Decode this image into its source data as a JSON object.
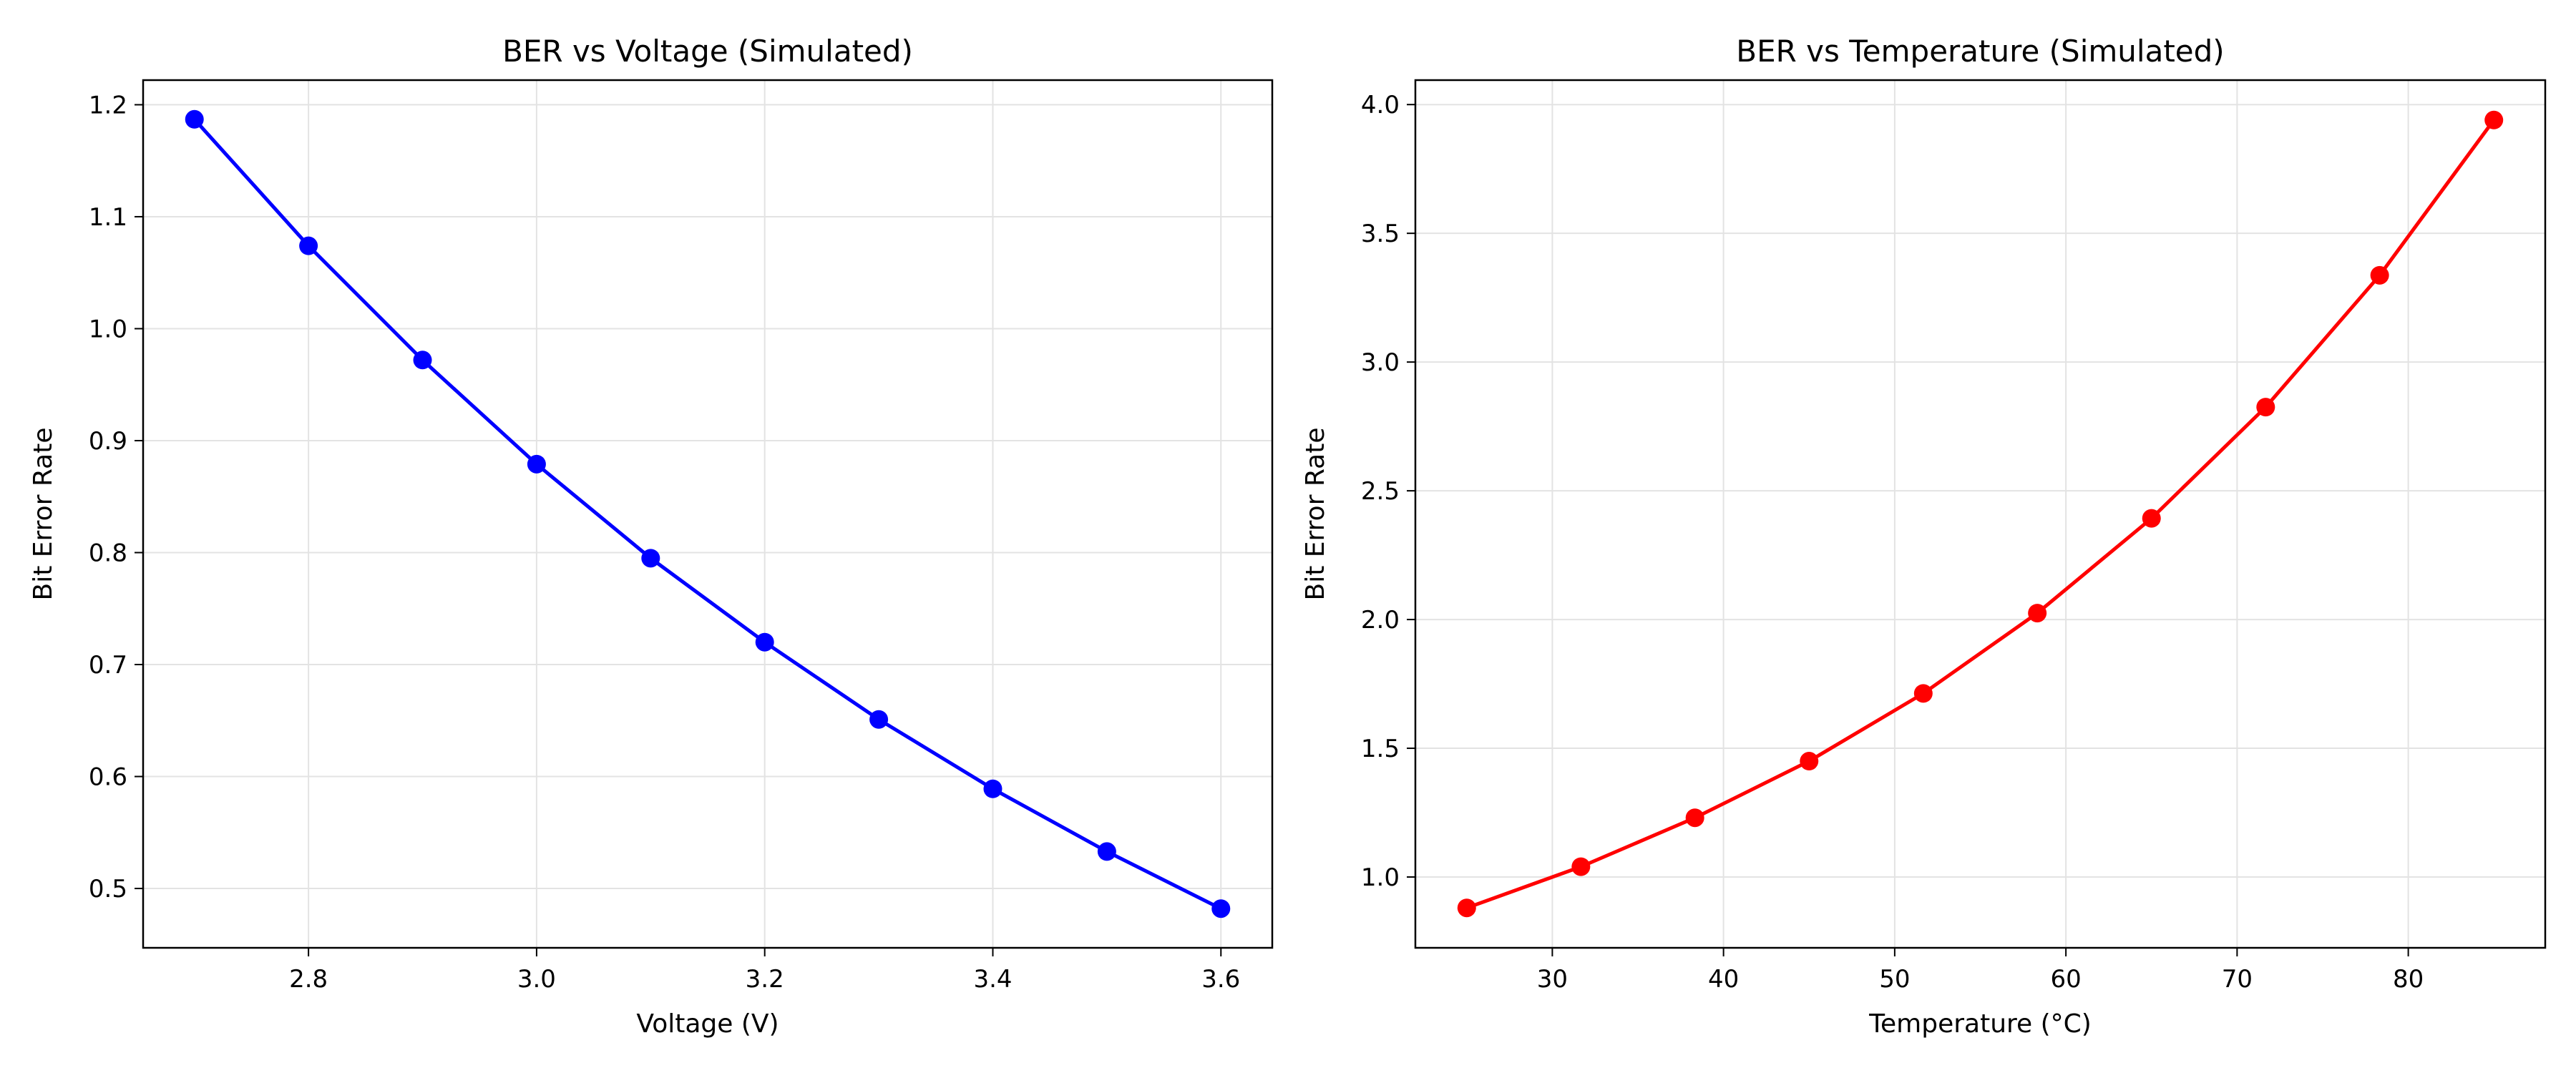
{
  "chart_data": [
    {
      "type": "line",
      "title": "BER vs Voltage (Simulated)",
      "xlabel": "Voltage (V)",
      "ylabel": "Bit Error Rate",
      "xlim": [
        2.655,
        3.645
      ],
      "ylim": [
        0.447,
        1.222
      ],
      "xticks": [
        2.8,
        3.0,
        3.2,
        3.4,
        3.6
      ],
      "xtick_labels": [
        "2.8",
        "3.0",
        "3.2",
        "3.4",
        "3.6"
      ],
      "yticks": [
        0.5,
        0.6,
        0.7,
        0.8,
        0.9,
        1.0,
        1.1,
        1.2
      ],
      "ytick_labels": [
        "0.5",
        "0.6",
        "0.7",
        "0.8",
        "0.9",
        "1.0",
        "1.1",
        "1.2"
      ],
      "grid": true,
      "color": "#0000ff",
      "marker": "circle",
      "series": [
        {
          "x": [
            2.7,
            2.8,
            2.9,
            3.0,
            3.1,
            3.2,
            3.3,
            3.4,
            3.5,
            3.6
          ],
          "values": [
            1.187,
            1.074,
            0.972,
            0.879,
            0.795,
            0.72,
            0.651,
            0.589,
            0.533,
            0.482
          ]
        }
      ]
    },
    {
      "type": "line",
      "title": "BER vs Temperature (Simulated)",
      "xlabel": "Temperature (°C)",
      "ylabel": "Bit Error Rate",
      "xlim": [
        22.0,
        88.0
      ],
      "ylim": [
        0.725,
        4.095
      ],
      "xticks": [
        30,
        40,
        50,
        60,
        70,
        80
      ],
      "xtick_labels": [
        "30",
        "40",
        "50",
        "60",
        "70",
        "80"
      ],
      "yticks": [
        1.0,
        1.5,
        2.0,
        2.5,
        3.0,
        3.5,
        4.0
      ],
      "ytick_labels": [
        "1.0",
        "1.5",
        "2.0",
        "2.5",
        "3.0",
        "3.5",
        "4.0"
      ],
      "grid": true,
      "color": "#ff0000",
      "marker": "circle",
      "series": [
        {
          "x": [
            25.0,
            31.67,
            38.33,
            45.0,
            51.67,
            58.33,
            65.0,
            71.67,
            78.33,
            85.0
          ],
          "values": [
            0.88,
            1.04,
            1.23,
            1.45,
            1.713,
            2.025,
            2.393,
            2.825,
            3.337,
            3.94
          ]
        }
      ]
    }
  ]
}
